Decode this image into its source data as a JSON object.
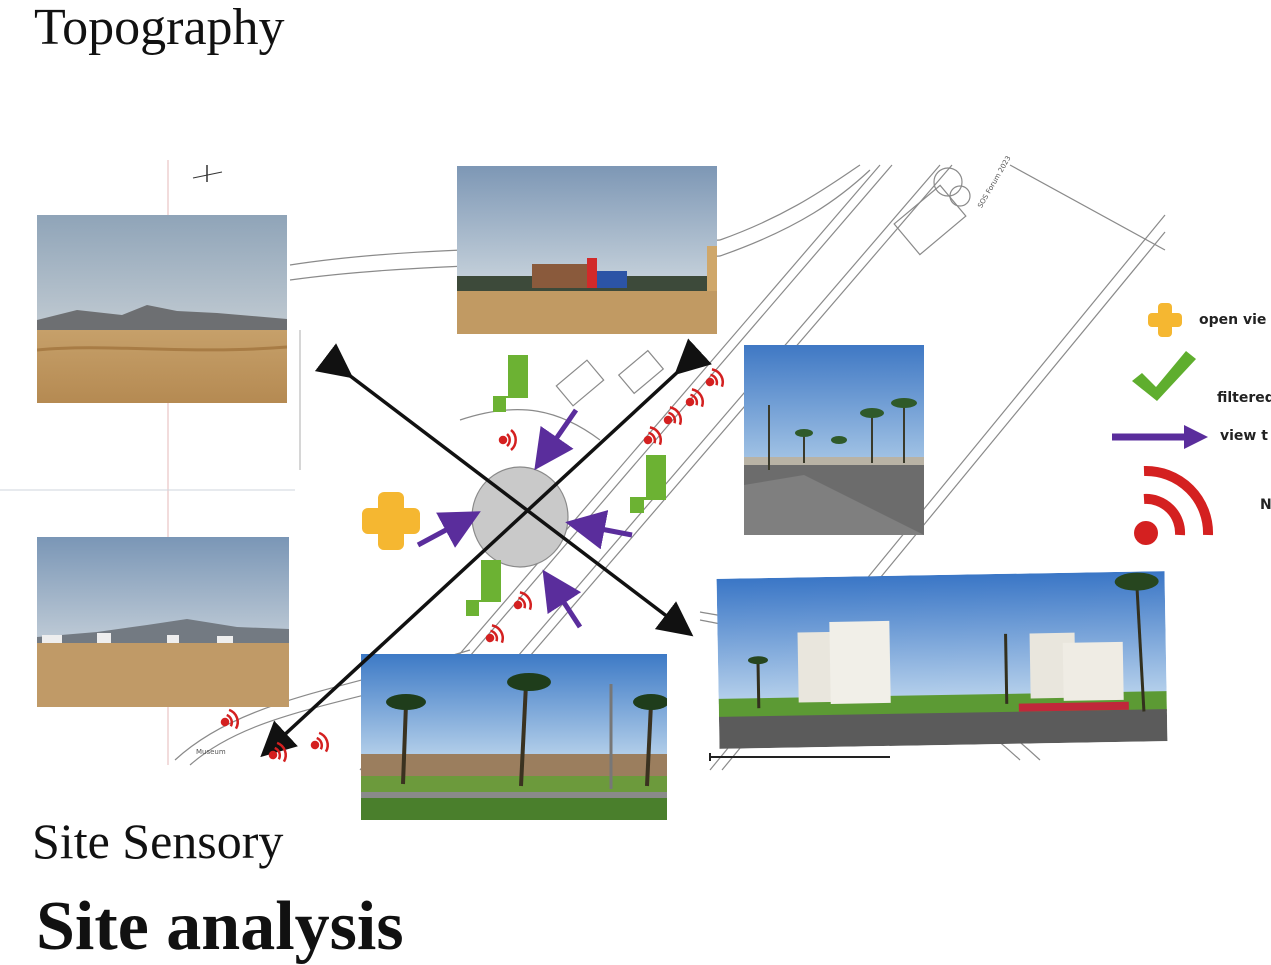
{
  "headings": {
    "topography": "Topography",
    "site_sensory": "Site Sensory",
    "site_analysis": "Site analysis"
  },
  "legend": [
    {
      "icon": "plus-icon",
      "label": "open vie",
      "color": "#f5b731"
    },
    {
      "icon": "check-icon",
      "label": "filtered",
      "color": "#5fae2e"
    },
    {
      "icon": "arrow-icon",
      "label": "view t",
      "color": "#5a2d9c"
    },
    {
      "icon": "noise-icon",
      "label": "N",
      "color": "#d42020"
    }
  ],
  "map_labels": {
    "museum": "Museum",
    "monument": "SOS Forum 2023"
  },
  "colors": {
    "open_view": "#f5b731",
    "filtered_view": "#5fae2e",
    "view_direction": "#5a2d9c",
    "noise": "#d42020",
    "axis_arrow": "#111111"
  }
}
